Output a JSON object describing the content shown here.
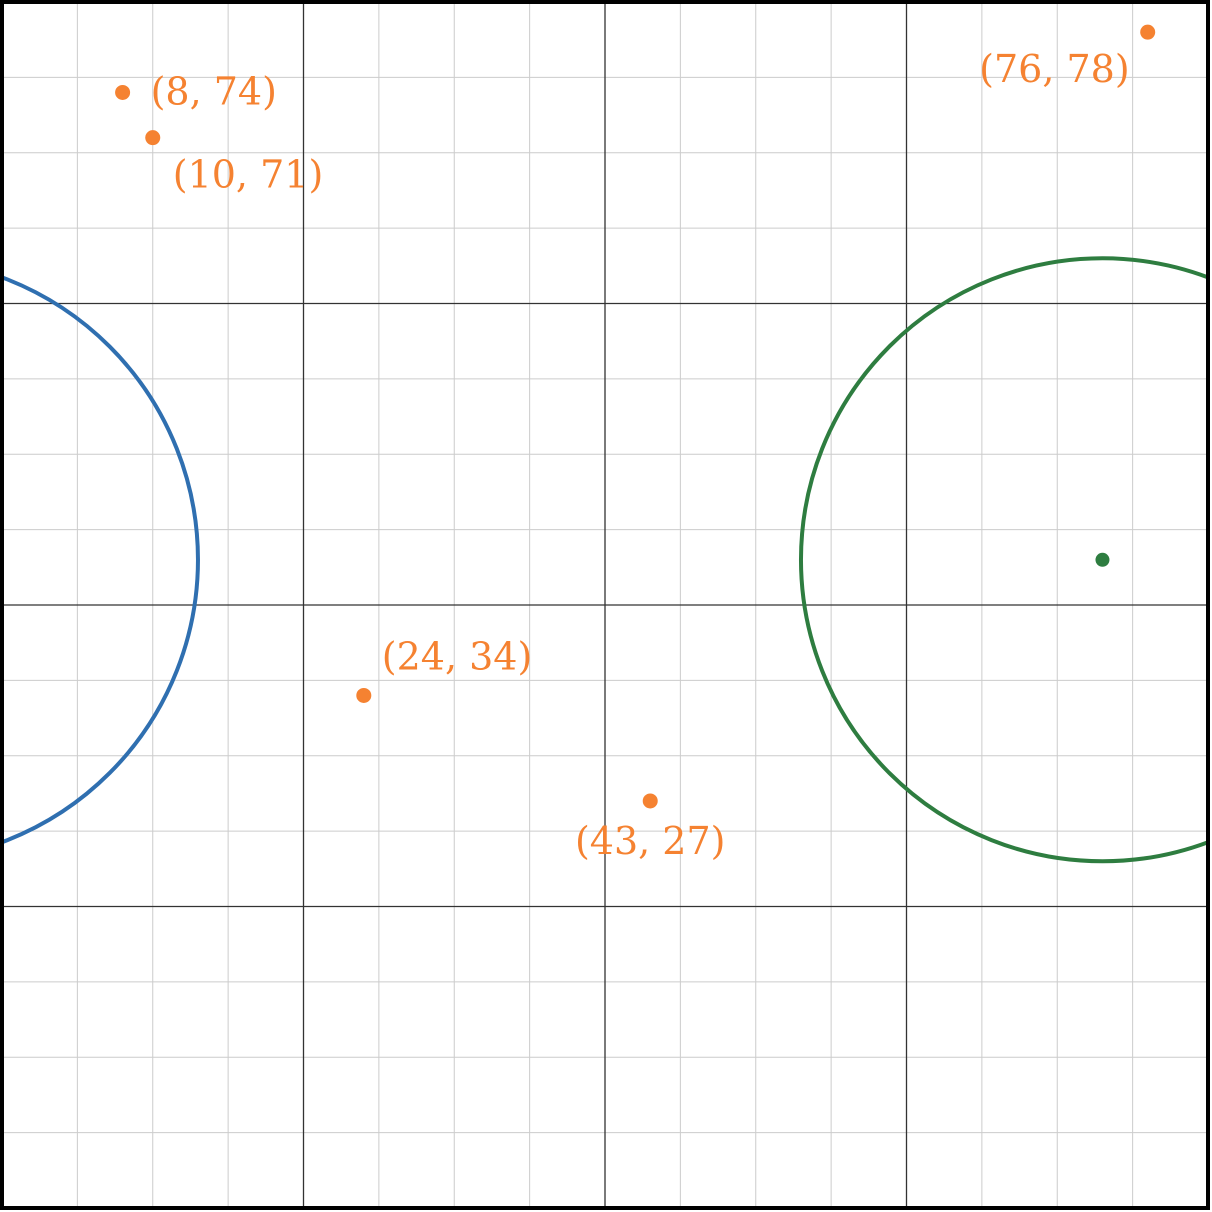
{
  "chart_data": {
    "type": "scatter",
    "xlim": [
      0,
      80
    ],
    "ylim": [
      0,
      80
    ],
    "grid": true,
    "minor_step": 5,
    "major_step": 20,
    "points": [
      {
        "x": 8,
        "y": 74,
        "label": "(8, 74)",
        "label_pos": "right"
      },
      {
        "x": 10,
        "y": 71,
        "label": "(10, 71)",
        "label_pos": "below-right"
      },
      {
        "x": 76,
        "y": 78,
        "label": "(76, 78)",
        "label_pos": "below-left"
      },
      {
        "x": 24,
        "y": 34,
        "label": "(24, 34)",
        "label_pos": "above-right"
      },
      {
        "x": 43,
        "y": 27,
        "label": "(43, 27)",
        "label_pos": "below"
      }
    ],
    "circles": [
      {
        "name": "",
        "cx": -7,
        "cy": 43,
        "r": 20
      },
      {
        "name": "",
        "cx": 73,
        "cy": 43,
        "r": 20,
        "center_marked": true
      }
    ]
  },
  "colors": {
    "points": "#f58231",
    "circle_blue": "#2f6fb0",
    "circle_green": "#2e7d40",
    "minor_grid": "#cccccc",
    "major_grid": "#333333",
    "frame": "#000000"
  }
}
